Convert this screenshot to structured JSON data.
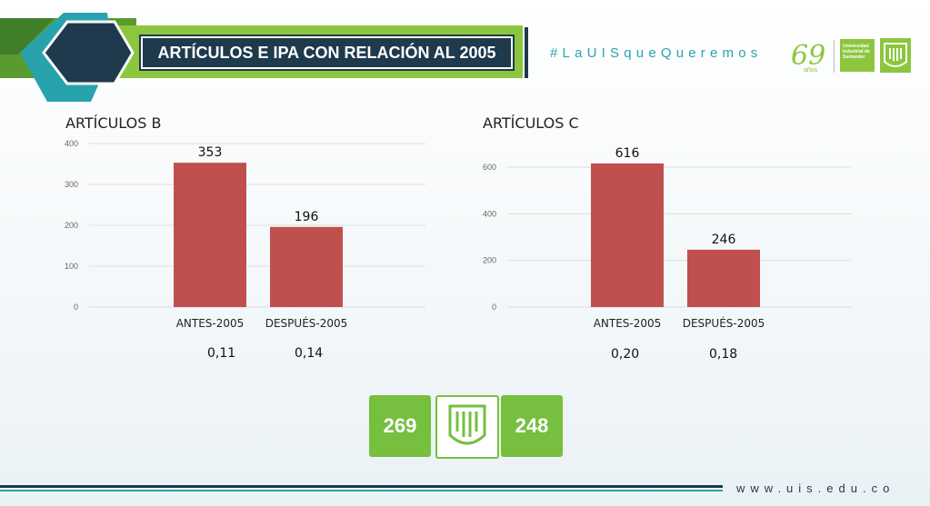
{
  "slide": {
    "title": "ARTÍCULOS E IPA CON RELACIÓN AL 2005",
    "hashtag": "#LaUISqueQueremos",
    "anniversary_number": "69",
    "anniversary_unit": "años",
    "university_name": "Universidad Industrial de Santander",
    "logo_text": "UIS",
    "footer_url": "www.uis.edu.co",
    "colors": {
      "bar": "#c0504d",
      "green": "#76bf3f",
      "navy": "#1e3a4c",
      "teal": "#28a3ad"
    }
  },
  "chart_data": [
    {
      "type": "bar",
      "title": "ARTÍCULOS B",
      "categories": [
        "ANTES-2005",
        "DESPUÉS-2005"
      ],
      "values": [
        353,
        196
      ],
      "data_labels": [
        "353",
        "196"
      ],
      "yticks": [
        "0",
        "100",
        "200",
        "300",
        "400"
      ],
      "ylim": [
        0,
        400
      ],
      "grid": true,
      "ipa": [
        "0,11",
        "0,14"
      ]
    },
    {
      "type": "bar",
      "title": "ARTÍCULOS C",
      "categories": [
        "ANTES-2005",
        "DESPUÉS-2005"
      ],
      "values": [
        616,
        246
      ],
      "data_labels": [
        "616",
        "246"
      ],
      "yticks": [
        "0",
        "200",
        "400",
        "600"
      ],
      "ylim": [
        0,
        600
      ],
      "grid": true,
      "ipa": [
        "0,20",
        "0,18"
      ]
    }
  ],
  "totals": {
    "left": "269",
    "right": "248"
  }
}
